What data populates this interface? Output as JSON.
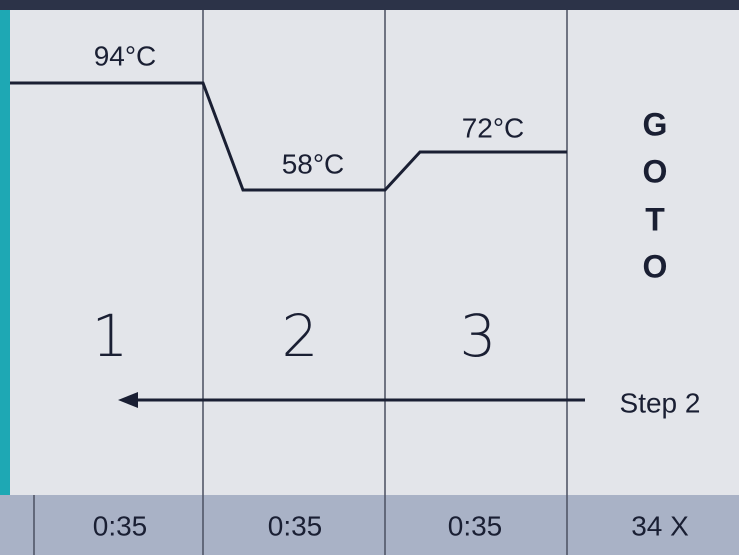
{
  "steps": [
    {
      "number": "1",
      "temperature": "94°C",
      "time": "0:35"
    },
    {
      "number": "2",
      "temperature": "58°C",
      "time": "0:35"
    },
    {
      "number": "3",
      "temperature": "72°C",
      "time": "0:35"
    }
  ],
  "goto": {
    "letters": [
      "G",
      "O",
      "T",
      "O"
    ],
    "target": "Step 2",
    "cycles": "34 X"
  }
}
